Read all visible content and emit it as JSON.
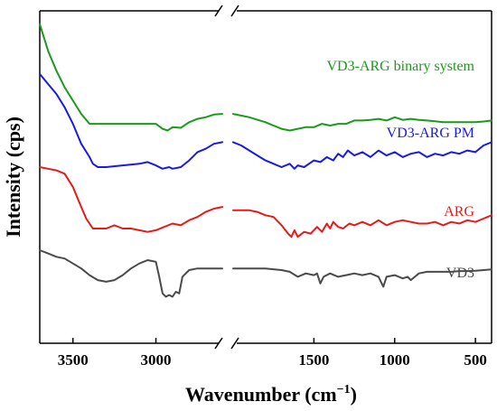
{
  "chart_data": {
    "type": "line",
    "xlabel": "Wavenumber (cm",
    "xlabel_sup": "−1",
    "xlabel_close": ")",
    "ylabel": "Intensity (cps)",
    "x_reversed": true,
    "x_axis_break": [
      2000,
      2600
    ],
    "xlim_left_segment": [
      3700,
      2600
    ],
    "xlim_right_segment": [
      2000,
      400
    ],
    "x_ticks": [
      "3500",
      "3000",
      "1500",
      "1000",
      "500"
    ],
    "x_tick_values": [
      3500,
      3000,
      1500,
      1000,
      500
    ],
    "y_ticks_shown": false,
    "grid": false,
    "series": [
      {
        "name": "VD3-ARG binary system",
        "color": "#1a9a1a",
        "points": [
          [
            3700,
            0.96
          ],
          [
            3650,
            0.88
          ],
          [
            3600,
            0.82
          ],
          [
            3550,
            0.77
          ],
          [
            3500,
            0.73
          ],
          [
            3450,
            0.69
          ],
          [
            3400,
            0.66
          ],
          [
            3350,
            0.66
          ],
          [
            3300,
            0.66
          ],
          [
            3200,
            0.66
          ],
          [
            3100,
            0.66
          ],
          [
            3000,
            0.66
          ],
          [
            2960,
            0.645
          ],
          [
            2930,
            0.64
          ],
          [
            2900,
            0.65
          ],
          [
            2850,
            0.648
          ],
          [
            2800,
            0.665
          ],
          [
            2750,
            0.675
          ],
          [
            2700,
            0.68
          ],
          [
            2650,
            0.688
          ],
          [
            2600,
            0.69
          ],
          [
            2000,
            0.69
          ],
          [
            1900,
            0.68
          ],
          [
            1800,
            0.665
          ],
          [
            1750,
            0.655
          ],
          [
            1700,
            0.645
          ],
          [
            1650,
            0.64
          ],
          [
            1600,
            0.645
          ],
          [
            1550,
            0.65
          ],
          [
            1500,
            0.65
          ],
          [
            1450,
            0.66
          ],
          [
            1400,
            0.655
          ],
          [
            1350,
            0.66
          ],
          [
            1300,
            0.66
          ],
          [
            1250,
            0.67
          ],
          [
            1200,
            0.67
          ],
          [
            1150,
            0.672
          ],
          [
            1100,
            0.675
          ],
          [
            1050,
            0.67
          ],
          [
            1000,
            0.68
          ],
          [
            950,
            0.672
          ],
          [
            900,
            0.675
          ],
          [
            850,
            0.672
          ],
          [
            800,
            0.67
          ],
          [
            750,
            0.668
          ],
          [
            700,
            0.665
          ],
          [
            650,
            0.665
          ],
          [
            600,
            0.665
          ],
          [
            550,
            0.665
          ],
          [
            500,
            0.665
          ],
          [
            450,
            0.667
          ],
          [
            400,
            0.67
          ]
        ]
      },
      {
        "name": "VD3-ARG PM",
        "color": "#1a1ae6",
        "points": [
          [
            3700,
            0.81
          ],
          [
            3650,
            0.78
          ],
          [
            3600,
            0.75
          ],
          [
            3550,
            0.71
          ],
          [
            3500,
            0.66
          ],
          [
            3450,
            0.6
          ],
          [
            3400,
            0.56
          ],
          [
            3380,
            0.54
          ],
          [
            3350,
            0.53
          ],
          [
            3300,
            0.53
          ],
          [
            3200,
            0.535
          ],
          [
            3100,
            0.54
          ],
          [
            3050,
            0.545
          ],
          [
            3000,
            0.535
          ],
          [
            2960,
            0.525
          ],
          [
            2920,
            0.53
          ],
          [
            2900,
            0.525
          ],
          [
            2850,
            0.53
          ],
          [
            2800,
            0.55
          ],
          [
            2750,
            0.575
          ],
          [
            2700,
            0.585
          ],
          [
            2650,
            0.6
          ],
          [
            2600,
            0.605
          ],
          [
            2000,
            0.605
          ],
          [
            1950,
            0.595
          ],
          [
            1900,
            0.58
          ],
          [
            1850,
            0.565
          ],
          [
            1800,
            0.55
          ],
          [
            1750,
            0.54
          ],
          [
            1700,
            0.53
          ],
          [
            1650,
            0.54
          ],
          [
            1620,
            0.525
          ],
          [
            1600,
            0.535
          ],
          [
            1560,
            0.53
          ],
          [
            1500,
            0.55
          ],
          [
            1460,
            0.545
          ],
          [
            1420,
            0.56
          ],
          [
            1380,
            0.55
          ],
          [
            1350,
            0.57
          ],
          [
            1320,
            0.56
          ],
          [
            1290,
            0.58
          ],
          [
            1250,
            0.565
          ],
          [
            1200,
            0.575
          ],
          [
            1150,
            0.56
          ],
          [
            1100,
            0.58
          ],
          [
            1050,
            0.565
          ],
          [
            1000,
            0.575
          ],
          [
            950,
            0.56
          ],
          [
            900,
            0.57
          ],
          [
            850,
            0.575
          ],
          [
            800,
            0.56
          ],
          [
            750,
            0.57
          ],
          [
            700,
            0.565
          ],
          [
            650,
            0.575
          ],
          [
            600,
            0.57
          ],
          [
            550,
            0.58
          ],
          [
            500,
            0.575
          ],
          [
            450,
            0.595
          ],
          [
            400,
            0.605
          ]
        ]
      },
      {
        "name": "ARG",
        "color": "#e61a1a",
        "points": [
          [
            3700,
            0.53
          ],
          [
            3650,
            0.525
          ],
          [
            3600,
            0.52
          ],
          [
            3550,
            0.51
          ],
          [
            3500,
            0.47
          ],
          [
            3450,
            0.41
          ],
          [
            3420,
            0.375
          ],
          [
            3400,
            0.36
          ],
          [
            3380,
            0.345
          ],
          [
            3350,
            0.345
          ],
          [
            3300,
            0.345
          ],
          [
            3250,
            0.355
          ],
          [
            3200,
            0.345
          ],
          [
            3150,
            0.345
          ],
          [
            3100,
            0.34
          ],
          [
            3050,
            0.335
          ],
          [
            3000,
            0.34
          ],
          [
            2950,
            0.35
          ],
          [
            2900,
            0.36
          ],
          [
            2850,
            0.355
          ],
          [
            2800,
            0.37
          ],
          [
            2750,
            0.38
          ],
          [
            2700,
            0.395
          ],
          [
            2650,
            0.405
          ],
          [
            2600,
            0.41
          ],
          [
            2000,
            0.4
          ],
          [
            1900,
            0.4
          ],
          [
            1850,
            0.395
          ],
          [
            1800,
            0.385
          ],
          [
            1750,
            0.38
          ],
          [
            1700,
            0.355
          ],
          [
            1660,
            0.33
          ],
          [
            1640,
            0.32
          ],
          [
            1620,
            0.34
          ],
          [
            1600,
            0.32
          ],
          [
            1560,
            0.335
          ],
          [
            1520,
            0.33
          ],
          [
            1480,
            0.35
          ],
          [
            1450,
            0.335
          ],
          [
            1420,
            0.36
          ],
          [
            1400,
            0.345
          ],
          [
            1380,
            0.365
          ],
          [
            1350,
            0.35
          ],
          [
            1320,
            0.345
          ],
          [
            1280,
            0.36
          ],
          [
            1250,
            0.355
          ],
          [
            1200,
            0.365
          ],
          [
            1150,
            0.355
          ],
          [
            1100,
            0.37
          ],
          [
            1050,
            0.355
          ],
          [
            1000,
            0.365
          ],
          [
            950,
            0.37
          ],
          [
            900,
            0.365
          ],
          [
            850,
            0.36
          ],
          [
            800,
            0.36
          ],
          [
            750,
            0.365
          ],
          [
            700,
            0.355
          ],
          [
            650,
            0.365
          ],
          [
            600,
            0.36
          ],
          [
            550,
            0.37
          ],
          [
            500,
            0.365
          ],
          [
            450,
            0.375
          ],
          [
            400,
            0.385
          ]
        ]
      },
      {
        "name": "VD3",
        "color": "#4a4a4a",
        "points": [
          [
            3700,
            0.28
          ],
          [
            3650,
            0.27
          ],
          [
            3600,
            0.26
          ],
          [
            3550,
            0.255
          ],
          [
            3500,
            0.24
          ],
          [
            3450,
            0.225
          ],
          [
            3400,
            0.205
          ],
          [
            3350,
            0.19
          ],
          [
            3300,
            0.185
          ],
          [
            3250,
            0.19
          ],
          [
            3200,
            0.205
          ],
          [
            3150,
            0.225
          ],
          [
            3100,
            0.24
          ],
          [
            3050,
            0.25
          ],
          [
            3000,
            0.245
          ],
          [
            2980,
            0.2
          ],
          [
            2960,
            0.15
          ],
          [
            2940,
            0.14
          ],
          [
            2920,
            0.145
          ],
          [
            2900,
            0.14
          ],
          [
            2880,
            0.155
          ],
          [
            2860,
            0.15
          ],
          [
            2840,
            0.2
          ],
          [
            2800,
            0.22
          ],
          [
            2750,
            0.225
          ],
          [
            2700,
            0.225
          ],
          [
            2650,
            0.225
          ],
          [
            2600,
            0.225
          ],
          [
            2000,
            0.225
          ],
          [
            1800,
            0.225
          ],
          [
            1700,
            0.22
          ],
          [
            1650,
            0.215
          ],
          [
            1600,
            0.2
          ],
          [
            1550,
            0.21
          ],
          [
            1500,
            0.205
          ],
          [
            1480,
            0.21
          ],
          [
            1460,
            0.18
          ],
          [
            1440,
            0.2
          ],
          [
            1400,
            0.21
          ],
          [
            1350,
            0.2
          ],
          [
            1300,
            0.205
          ],
          [
            1250,
            0.21
          ],
          [
            1200,
            0.205
          ],
          [
            1150,
            0.21
          ],
          [
            1100,
            0.2
          ],
          [
            1070,
            0.17
          ],
          [
            1050,
            0.2
          ],
          [
            1000,
            0.205
          ],
          [
            950,
            0.195
          ],
          [
            920,
            0.2
          ],
          [
            900,
            0.19
          ],
          [
            850,
            0.21
          ],
          [
            800,
            0.215
          ],
          [
            750,
            0.215
          ],
          [
            700,
            0.215
          ],
          [
            650,
            0.215
          ],
          [
            600,
            0.217
          ],
          [
            550,
            0.217
          ],
          [
            500,
            0.218
          ],
          [
            450,
            0.22
          ],
          [
            400,
            0.222
          ]
        ]
      }
    ],
    "annotations": [
      {
        "text": "VD3-ARG binary system",
        "series": 0
      },
      {
        "text": "VD3-ARG PM",
        "series": 1
      },
      {
        "text": "ARG",
        "series": 2
      },
      {
        "text": "VD3",
        "series": 3
      }
    ]
  }
}
